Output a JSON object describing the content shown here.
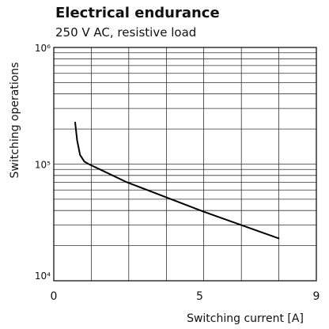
{
  "chart_data": {
    "type": "line",
    "title": "Electrical endurance",
    "subtitle": "250 V AC, resistive load",
    "x_label": "Switching current [A]",
    "y_label": "Switching operations",
    "xlim": [
      0,
      9
    ],
    "xticks": [
      0,
      5,
      9
    ],
    "x_gridlines": [
      1.29,
      2.57,
      3.86,
      5.14,
      6.43,
      7.71
    ],
    "ylim": [
      10000,
      1000000
    ],
    "y_log": true,
    "grid": true,
    "yticks": [
      {
        "value": 10000,
        "label": "10⁴"
      },
      {
        "value": 100000,
        "label": "10⁵"
      },
      {
        "value": 1000000,
        "label": "10⁶"
      }
    ],
    "color": "#000000",
    "x": [
      0.73,
      0.8,
      0.9,
      1.05,
      1.2,
      2.5,
      5.15,
      7.73
    ],
    "values": [
      230000,
      160000,
      120000,
      105000,
      100000,
      70000,
      39000,
      23000
    ]
  }
}
